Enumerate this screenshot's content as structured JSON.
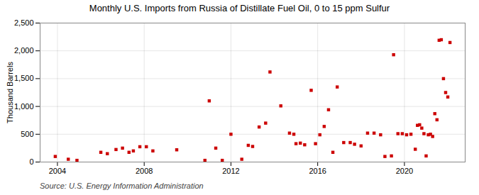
{
  "chart_data": {
    "type": "scatter",
    "title": "Monthly U.S. Imports from Russia of Distillate Fuel Oil, 0 to 15 ppm Sulfur",
    "ylabel": "Thousand Barrels",
    "source": "Source: U.S. Energy Information Administration",
    "color": "#cc0000",
    "marker": "square",
    "grid": true,
    "xlim": [
      2003.2,
      2022.8
    ],
    "xticks": [
      2004,
      2008,
      2012,
      2016,
      2020
    ],
    "ylim": [
      0,
      2500
    ],
    "yticks": [
      0,
      500,
      {
        "value": 1000,
        "label": "1,000"
      },
      {
        "value": 1500,
        "label": "1,500"
      },
      {
        "value": 2000,
        "label": "2,000"
      },
      {
        "value": 2500,
        "label": "2,500"
      }
    ],
    "x": [
      2003.9,
      2004.5,
      2004.9,
      2006.0,
      2006.3,
      2006.7,
      2007.0,
      2007.3,
      2007.5,
      2007.8,
      2008.1,
      2008.4,
      2009.5,
      2010.8,
      2011.0,
      2011.3,
      2011.6,
      2012.0,
      2012.5,
      2012.8,
      2013.0,
      2013.3,
      2013.6,
      2013.8,
      2014.3,
      2014.7,
      2014.9,
      2015.0,
      2015.2,
      2015.4,
      2015.7,
      2015.9,
      2016.1,
      2016.3,
      2016.5,
      2016.7,
      2016.9,
      2017.2,
      2017.5,
      2017.7,
      2018.0,
      2018.3,
      2018.6,
      2018.9,
      2019.1,
      2019.4,
      2019.5,
      2019.7,
      2019.9,
      2020.1,
      2020.3,
      2020.5,
      2020.6,
      2020.7,
      2020.8,
      2020.9,
      2021.0,
      2021.1,
      2021.2,
      2021.3,
      2021.4,
      2021.5,
      2021.6,
      2021.7,
      2021.8,
      2021.9,
      2022.0,
      2022.1
    ],
    "values": [
      100,
      50,
      30,
      175,
      150,
      225,
      250,
      175,
      200,
      275,
      275,
      200,
      220,
      30,
      1100,
      250,
      30,
      500,
      50,
      300,
      280,
      630,
      700,
      1620,
      1010,
      520,
      500,
      330,
      340,
      310,
      1290,
      330,
      490,
      640,
      940,
      175,
      1350,
      350,
      350,
      320,
      290,
      520,
      520,
      490,
      100,
      110,
      1930,
      510,
      510,
      490,
      500,
      230,
      660,
      670,
      610,
      510,
      110,
      490,
      500,
      460,
      870,
      760,
      2190,
      2200,
      1500,
      1250,
      1170,
      2150
    ]
  }
}
